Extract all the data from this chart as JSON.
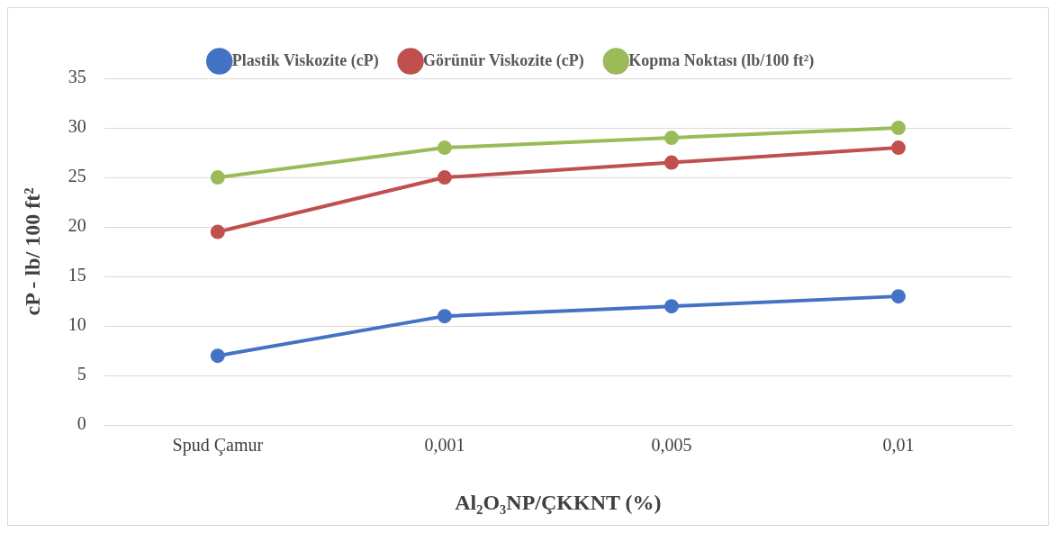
{
  "chart_data": {
    "type": "line",
    "categories": [
      "Spud Çamur",
      "0,001",
      "0,005",
      "0,01"
    ],
    "series": [
      {
        "name": "Plastik Viskozite (cP)",
        "color": "#4472c4",
        "values": [
          7,
          11,
          12,
          13
        ]
      },
      {
        "name": "Görünür Viskozite (cP)",
        "color": "#c0504d",
        "values": [
          19.5,
          25,
          26.5,
          28
        ]
      },
      {
        "name": "Kopma Noktası (lb/100 ft²)",
        "color": "#9bbb59",
        "values": [
          25,
          28,
          29,
          30
        ]
      }
    ],
    "xlabel": "Al₂O₃NP/ÇKKNT (%)",
    "ylabel": "cP - lb/ 100 ft²",
    "ylim": [
      0,
      35
    ],
    "yticks": [
      0,
      5,
      10,
      15,
      20,
      25,
      30,
      35
    ],
    "grid": "y",
    "legend": "top",
    "marker": "circle",
    "line_style": "solid"
  }
}
